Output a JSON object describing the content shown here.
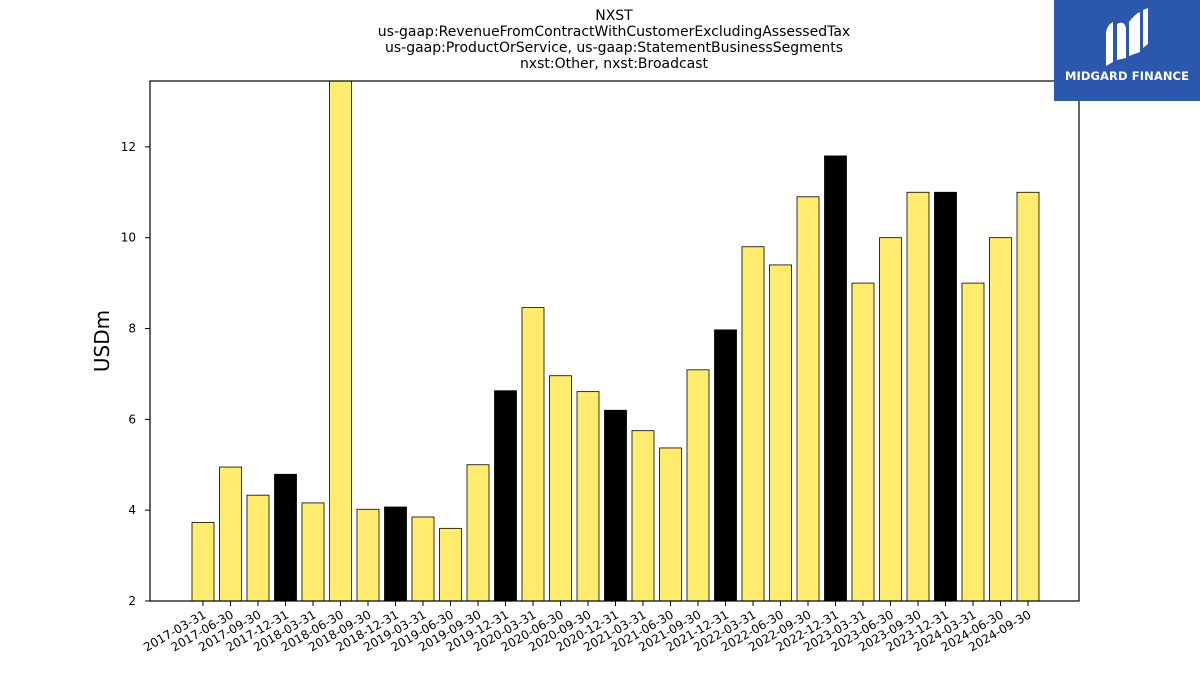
{
  "logo": {
    "text": "MIDGARD FINANCE",
    "icon": "midgard-m-logo-icon",
    "background": "#2b57ad"
  },
  "chart_data": {
    "type": "bar",
    "title": [
      "NXST",
      "us-gaap:RevenueFromContractWithCustomerExcludingAssessedTax",
      "us-gaap:ProductOrService, us-gaap:StatementBusinessSegments",
      "nxst:Other, nxst:Broadcast"
    ],
    "xlabel": "",
    "ylabel": "USDm",
    "ylim": [
      2,
      13.45
    ],
    "yticks": [
      2,
      4,
      6,
      8,
      10,
      12
    ],
    "grid": false,
    "colors": {
      "quarter": "#ffec6e",
      "year_end": "#000000",
      "edge": "#000000"
    },
    "categories": [
      "2017-03-31",
      "2017-06-30",
      "2017-09-30",
      "2017-12-31",
      "2018-03-31",
      "2018-06-30",
      "2018-09-30",
      "2018-12-31",
      "2019-03-31",
      "2019-06-30",
      "2019-09-30",
      "2019-12-31",
      "2020-03-31",
      "2020-06-30",
      "2020-09-30",
      "2020-12-31",
      "2021-03-31",
      "2021-06-30",
      "2021-09-30",
      "2021-12-31",
      "2022-03-31",
      "2022-06-30",
      "2022-09-30",
      "2022-12-31",
      "2023-03-31",
      "2023-06-30",
      "2023-09-30",
      "2023-12-31",
      "2024-03-31",
      "2024-06-30",
      "2024-09-30"
    ],
    "values": [
      3.73,
      4.95,
      4.33,
      4.79,
      4.16,
      13.6,
      4.02,
      4.07,
      3.85,
      3.6,
      5.0,
      6.63,
      8.46,
      6.96,
      6.61,
      6.2,
      5.75,
      5.37,
      7.09,
      7.97,
      9.8,
      9.4,
      10.9,
      11.8,
      9.0,
      10.0,
      11.0,
      11.0,
      9.0,
      10.0,
      11.0
    ]
  }
}
